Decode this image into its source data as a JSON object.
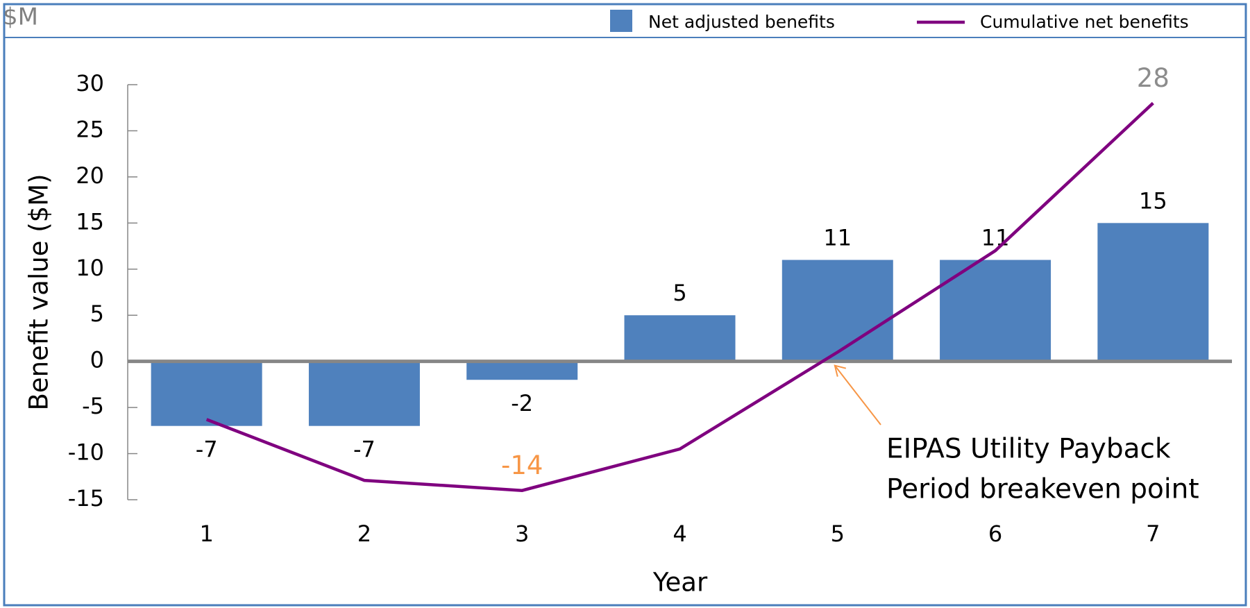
{
  "chart_data": {
    "type": "bar_line",
    "unit_label": "$M",
    "y_axis_label": "Benefit value ($M)",
    "x_axis_label": "Year",
    "categories": [
      1,
      2,
      3,
      4,
      5,
      6,
      7
    ],
    "series": [
      {
        "name": "Net adjusted benefits",
        "type": "bar",
        "color": "#4f81bd",
        "values": [
          -7,
          -7,
          -2,
          5,
          11,
          11,
          15
        ]
      },
      {
        "name": "Cumulative net benefits",
        "type": "line",
        "color": "#7f007f",
        "values": [
          -6.3,
          -12.9,
          -14,
          -9.5,
          1,
          12,
          28
        ]
      }
    ],
    "line_labels": [
      {
        "index": 2,
        "color": "#f79646"
      },
      {
        "index": 6,
        "color": "#8c8c8c"
      }
    ],
    "ylim": [
      -15,
      30
    ],
    "yticks": [
      -15,
      -10,
      -5,
      0,
      5,
      10,
      15,
      20,
      25,
      30
    ],
    "annotation": {
      "lines": [
        "EIPAS Utility Payback",
        "Period breakeven point"
      ],
      "color": "#f79646",
      "point_index": 4
    }
  }
}
